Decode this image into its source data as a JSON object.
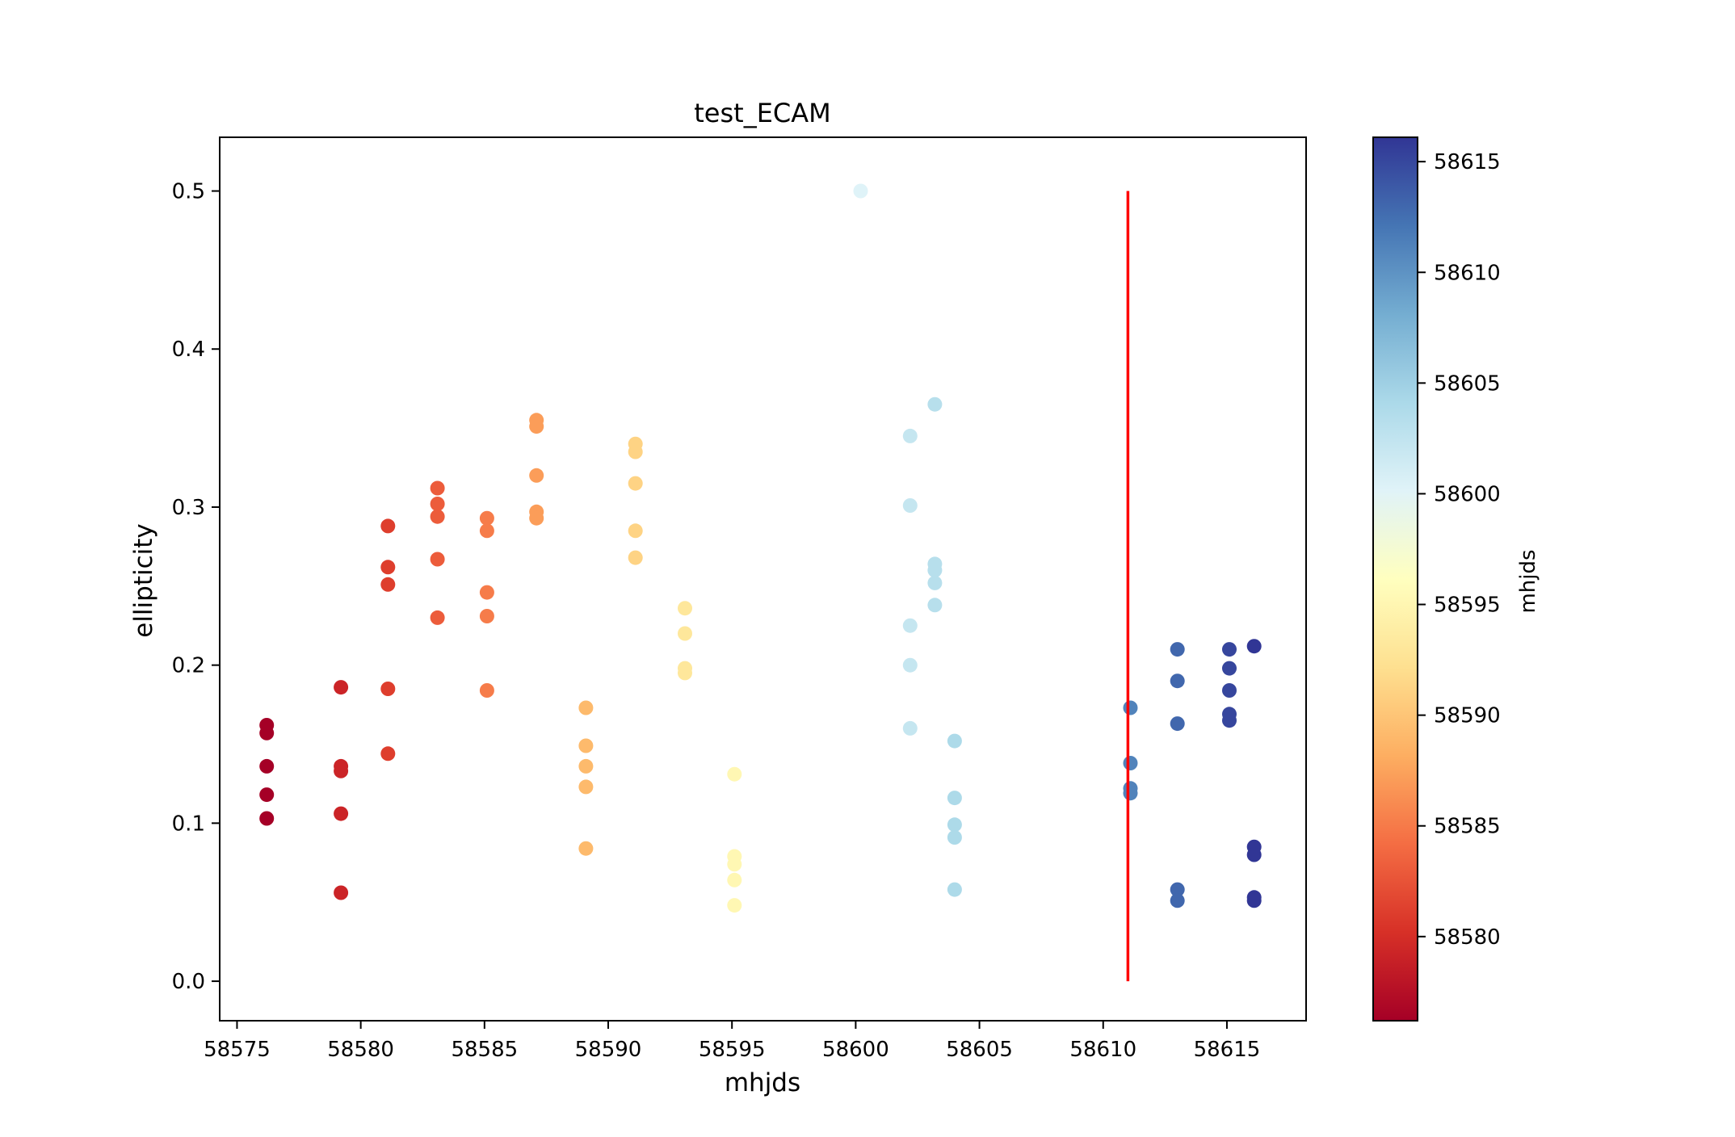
{
  "chart_data": {
    "type": "scatter",
    "title": "test_ECAM",
    "xlabel": "mhjds",
    "ylabel": "ellipticity",
    "xlim": [
      58574.3,
      58618.2
    ],
    "ylim": [
      -0.025,
      0.534
    ],
    "xticks": [
      58575,
      58580,
      58585,
      58590,
      58595,
      58600,
      58605,
      58610,
      58615
    ],
    "yticks": [
      0.0,
      0.1,
      0.2,
      0.3,
      0.4,
      0.5
    ],
    "xtick_labels": [
      "58575",
      "58580",
      "58585",
      "58590",
      "58595",
      "58600",
      "58605",
      "58610",
      "58615"
    ],
    "ytick_labels": [
      "0.0",
      "0.1",
      "0.2",
      "0.3",
      "0.4",
      "0.5"
    ],
    "colormap": "RdYlBu",
    "colorbar": {
      "label": "mhjds",
      "range": [
        58576.2,
        58616.1
      ],
      "ticks": [
        58580,
        58585,
        58590,
        58595,
        58600,
        58605,
        58610,
        58615
      ],
      "tick_labels": [
        "58580",
        "58585",
        "58590",
        "58595",
        "58600",
        "58605",
        "58610",
        "58615"
      ]
    },
    "vline": {
      "x": 58611.0,
      "ymin": 0.0,
      "ymax": 0.5,
      "color": "#ff0000"
    },
    "points": [
      {
        "x": 58576.2,
        "y": 0.162
      },
      {
        "x": 58576.2,
        "y": 0.157
      },
      {
        "x": 58576.2,
        "y": 0.136
      },
      {
        "x": 58576.2,
        "y": 0.118
      },
      {
        "x": 58576.2,
        "y": 0.103
      },
      {
        "x": 58579.2,
        "y": 0.186
      },
      {
        "x": 58579.2,
        "y": 0.136
      },
      {
        "x": 58579.2,
        "y": 0.133
      },
      {
        "x": 58579.2,
        "y": 0.106
      },
      {
        "x": 58579.2,
        "y": 0.056
      },
      {
        "x": 58581.1,
        "y": 0.288
      },
      {
        "x": 58581.1,
        "y": 0.262
      },
      {
        "x": 58581.1,
        "y": 0.251
      },
      {
        "x": 58581.1,
        "y": 0.185
      },
      {
        "x": 58581.1,
        "y": 0.144
      },
      {
        "x": 58583.1,
        "y": 0.312
      },
      {
        "x": 58583.1,
        "y": 0.302
      },
      {
        "x": 58583.1,
        "y": 0.294
      },
      {
        "x": 58583.1,
        "y": 0.267
      },
      {
        "x": 58583.1,
        "y": 0.23
      },
      {
        "x": 58585.1,
        "y": 0.293
      },
      {
        "x": 58585.1,
        "y": 0.285
      },
      {
        "x": 58585.1,
        "y": 0.246
      },
      {
        "x": 58585.1,
        "y": 0.231
      },
      {
        "x": 58585.1,
        "y": 0.184
      },
      {
        "x": 58587.1,
        "y": 0.355
      },
      {
        "x": 58587.1,
        "y": 0.351
      },
      {
        "x": 58587.1,
        "y": 0.32
      },
      {
        "x": 58587.1,
        "y": 0.297
      },
      {
        "x": 58587.1,
        "y": 0.293
      },
      {
        "x": 58589.1,
        "y": 0.173
      },
      {
        "x": 58589.1,
        "y": 0.149
      },
      {
        "x": 58589.1,
        "y": 0.136
      },
      {
        "x": 58589.1,
        "y": 0.123
      },
      {
        "x": 58589.1,
        "y": 0.084
      },
      {
        "x": 58591.1,
        "y": 0.34
      },
      {
        "x": 58591.1,
        "y": 0.335
      },
      {
        "x": 58591.1,
        "y": 0.315
      },
      {
        "x": 58591.1,
        "y": 0.285
      },
      {
        "x": 58591.1,
        "y": 0.268
      },
      {
        "x": 58593.1,
        "y": 0.236
      },
      {
        "x": 58593.1,
        "y": 0.22
      },
      {
        "x": 58593.1,
        "y": 0.198
      },
      {
        "x": 58593.1,
        "y": 0.195
      },
      {
        "x": 58595.1,
        "y": 0.131
      },
      {
        "x": 58595.1,
        "y": 0.079
      },
      {
        "x": 58595.1,
        "y": 0.074
      },
      {
        "x": 58595.1,
        "y": 0.064
      },
      {
        "x": 58595.1,
        "y": 0.048
      },
      {
        "x": 58600.2,
        "y": 0.5
      },
      {
        "x": 58602.2,
        "y": 0.345
      },
      {
        "x": 58602.2,
        "y": 0.301
      },
      {
        "x": 58602.2,
        "y": 0.225
      },
      {
        "x": 58602.2,
        "y": 0.2
      },
      {
        "x": 58602.2,
        "y": 0.16
      },
      {
        "x": 58603.2,
        "y": 0.365
      },
      {
        "x": 58603.2,
        "y": 0.264
      },
      {
        "x": 58603.2,
        "y": 0.26
      },
      {
        "x": 58603.2,
        "y": 0.252
      },
      {
        "x": 58603.2,
        "y": 0.238
      },
      {
        "x": 58604.0,
        "y": 0.152
      },
      {
        "x": 58604.0,
        "y": 0.116
      },
      {
        "x": 58604.0,
        "y": 0.099
      },
      {
        "x": 58604.0,
        "y": 0.091
      },
      {
        "x": 58604.0,
        "y": 0.058
      },
      {
        "x": 58611.1,
        "y": 0.173
      },
      {
        "x": 58611.1,
        "y": 0.138
      },
      {
        "x": 58611.1,
        "y": 0.122
      },
      {
        "x": 58611.1,
        "y": 0.119
      },
      {
        "x": 58613.0,
        "y": 0.21
      },
      {
        "x": 58613.0,
        "y": 0.19
      },
      {
        "x": 58613.0,
        "y": 0.163
      },
      {
        "x": 58613.0,
        "y": 0.058
      },
      {
        "x": 58613.0,
        "y": 0.051
      },
      {
        "x": 58615.1,
        "y": 0.21
      },
      {
        "x": 58615.1,
        "y": 0.198
      },
      {
        "x": 58615.1,
        "y": 0.184
      },
      {
        "x": 58615.1,
        "y": 0.169
      },
      {
        "x": 58615.1,
        "y": 0.165
      },
      {
        "x": 58616.1,
        "y": 0.212
      },
      {
        "x": 58616.1,
        "y": 0.085
      },
      {
        "x": 58616.1,
        "y": 0.08
      },
      {
        "x": 58616.1,
        "y": 0.053
      },
      {
        "x": 58616.1,
        "y": 0.051
      }
    ]
  }
}
